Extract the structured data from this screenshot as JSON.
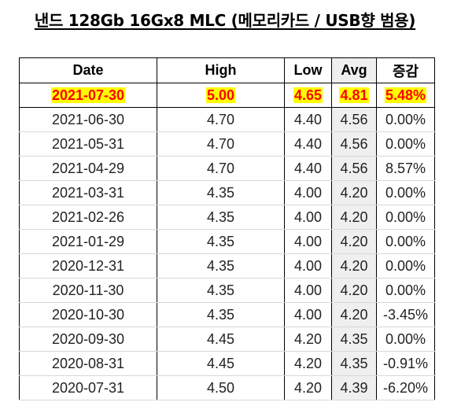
{
  "title": "낸드 128Gb 16Gx8 MLC (메모리카드 / USB향 범용)",
  "columns": [
    "Date",
    "High",
    "Low",
    "Avg",
    "증감"
  ],
  "highlight_row": {
    "date": "2021-07-30",
    "high": "5.00",
    "low": "4.65",
    "avg": "4.81",
    "change": "5.48%"
  },
  "rows": [
    {
      "date": "2021-06-30",
      "high": "4.70",
      "low": "4.40",
      "avg": "4.56",
      "change": "0.00%"
    },
    {
      "date": "2021-05-31",
      "high": "4.70",
      "low": "4.40",
      "avg": "4.56",
      "change": "0.00%"
    },
    {
      "date": "2021-04-29",
      "high": "4.70",
      "low": "4.40",
      "avg": "4.56",
      "change": "8.57%"
    },
    {
      "date": "2021-03-31",
      "high": "4.35",
      "low": "4.00",
      "avg": "4.20",
      "change": "0.00%"
    },
    {
      "date": "2021-02-26",
      "high": "4.35",
      "low": "4.00",
      "avg": "4.20",
      "change": "0.00%"
    },
    {
      "date": "2021-01-29",
      "high": "4.35",
      "low": "4.00",
      "avg": "4.20",
      "change": "0.00%"
    },
    {
      "date": "2020-12-31",
      "high": "4.35",
      "low": "4.00",
      "avg": "4.20",
      "change": "0.00%"
    },
    {
      "date": "2020-11-30",
      "high": "4.35",
      "low": "4.00",
      "avg": "4.20",
      "change": "0.00%"
    },
    {
      "date": "2020-10-30",
      "high": "4.35",
      "low": "4.00",
      "avg": "4.20",
      "change": "-3.45%"
    },
    {
      "date": "2020-09-30",
      "high": "4.45",
      "low": "4.20",
      "avg": "4.35",
      "change": "0.00%"
    },
    {
      "date": "2020-08-31",
      "high": "4.45",
      "low": "4.20",
      "avg": "4.35",
      "change": "-0.91%"
    },
    {
      "date": "2020-07-31",
      "high": "4.50",
      "low": "4.20",
      "avg": "4.39",
      "change": "-6.20%"
    }
  ],
  "colors": {
    "highlight_bg": "#ffff00",
    "highlight_text": "#ff0000",
    "avg_column_bg": "#efefef"
  }
}
